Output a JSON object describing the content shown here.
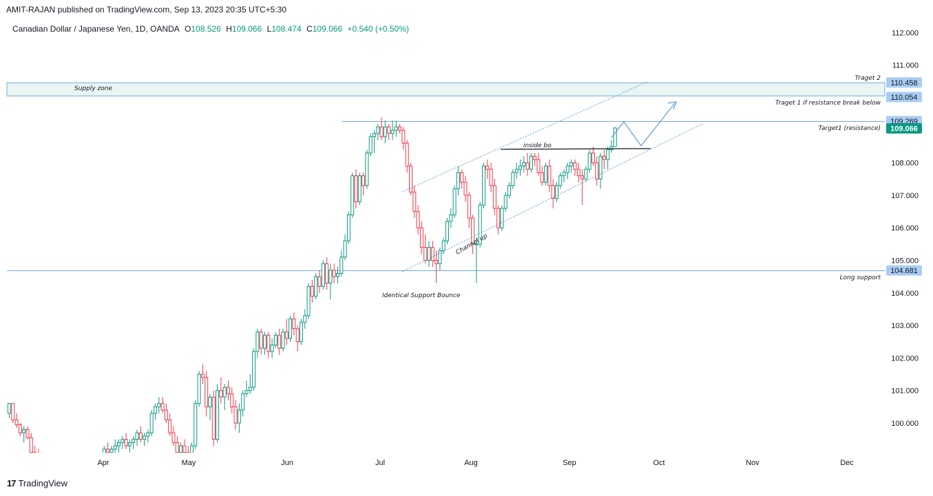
{
  "header": {
    "published": "AMIT-RAJAN published on TradingView.com, Sep 13, 2023 20:35 UTC+5:30"
  },
  "legend": {
    "symbol": "Canadian Dollar / Japanese Yen, 1D, OANDA",
    "o_label": "O",
    "o_value": "108.526",
    "h_label": "H",
    "h_value": "109.066",
    "l_label": "L",
    "l_value": "108.474",
    "c_label": "C",
    "c_value": "109.066",
    "change": "+0.540 (+0.50%)"
  },
  "footer": {
    "brand": "TradingView",
    "logo": "17"
  },
  "colors": {
    "up": "#089981",
    "down": "#f23645",
    "line": "#5b9bd5",
    "zone_fill": "#e8f5f3",
    "tag_fill": "#a9cdf4",
    "last_fill": "#089981",
    "trend": "#2962ff"
  },
  "chart_data": {
    "type": "candlestick",
    "title": "Canadian Dollar / Japanese Yen, 1D, OANDA",
    "ylim": [
      99.2,
      112.5
    ],
    "y_ticks": [
      100,
      101,
      102,
      103,
      104,
      105,
      106,
      107,
      108,
      109,
      110,
      111,
      112
    ],
    "y_tick_labels": [
      "100.000",
      "101.000",
      "102.000",
      "103.000",
      "104.000",
      "105.000",
      "106.000",
      "107.000",
      "108.000",
      "",
      "",
      "111.000",
      "112.000"
    ],
    "x_month_labels": [
      "Apr",
      "May",
      "Jun",
      "Jul",
      "Aug",
      "Sep",
      "Oct",
      "Nov",
      "Dec"
    ],
    "candles": [
      [
        100.3,
        100.6,
        100.15,
        100.6
      ],
      [
        100.6,
        100.6,
        100.0,
        100.1
      ],
      [
        100.1,
        100.3,
        99.85,
        99.95
      ],
      [
        99.95,
        100.0,
        99.6,
        99.7
      ],
      [
        99.7,
        99.9,
        99.4,
        99.8
      ],
      [
        99.8,
        99.9,
        99.5,
        99.55
      ],
      [
        99.55,
        99.7,
        99.0,
        99.1
      ],
      [
        99.1,
        99.3,
        98.8,
        99.0
      ],
      [
        99.0,
        99.2,
        98.7,
        98.9
      ],
      [
        98.9,
        99.1,
        98.6,
        98.8
      ],
      [
        98.8,
        99.0,
        98.5,
        98.7
      ],
      [
        98.7,
        98.9,
        98.4,
        98.6
      ],
      [
        98.6,
        98.8,
        98.3,
        98.7
      ],
      [
        98.7,
        98.9,
        98.4,
        98.6
      ],
      [
        98.6,
        98.8,
        98.4,
        98.5
      ],
      [
        98.5,
        98.7,
        98.3,
        98.6
      ],
      [
        98.6,
        98.8,
        98.4,
        98.7
      ],
      [
        98.7,
        98.9,
        98.5,
        98.6
      ],
      [
        98.6,
        98.8,
        98.4,
        98.5
      ],
      [
        98.5,
        98.7,
        98.3,
        98.4
      ],
      [
        98.4,
        98.6,
        98.2,
        98.5
      ],
      [
        98.5,
        98.7,
        98.3,
        98.6
      ],
      [
        98.6,
        98.8,
        98.4,
        98.7
      ],
      [
        98.7,
        98.9,
        98.5,
        98.8
      ],
      [
        98.8,
        99.0,
        98.6,
        98.9
      ],
      [
        98.9,
        99.1,
        98.7,
        99.0
      ],
      [
        99.0,
        99.3,
        98.8,
        99.2
      ],
      [
        99.2,
        99.4,
        99.0,
        99.1
      ],
      [
        99.1,
        99.3,
        98.9,
        99.2
      ],
      [
        99.2,
        99.5,
        99.0,
        99.3
      ],
      [
        99.3,
        99.5,
        99.1,
        99.4
      ],
      [
        99.4,
        99.6,
        99.2,
        99.5
      ],
      [
        99.5,
        99.7,
        99.2,
        99.3
      ],
      [
        99.3,
        99.5,
        99.1,
        99.4
      ],
      [
        99.4,
        99.6,
        99.2,
        99.5
      ],
      [
        99.5,
        99.8,
        99.3,
        99.7
      ],
      [
        99.7,
        99.9,
        99.4,
        99.5
      ],
      [
        99.5,
        99.7,
        99.3,
        99.6
      ],
      [
        99.6,
        99.8,
        99.4,
        99.7
      ],
      [
        99.7,
        100.4,
        99.6,
        100.3
      ],
      [
        100.3,
        100.6,
        100.1,
        100.5
      ],
      [
        100.5,
        100.8,
        100.3,
        100.6
      ],
      [
        100.6,
        100.8,
        100.3,
        100.4
      ],
      [
        100.4,
        100.6,
        100.0,
        100.1
      ],
      [
        100.1,
        100.3,
        99.6,
        99.7
      ],
      [
        99.7,
        99.9,
        99.3,
        99.4
      ],
      [
        99.4,
        99.6,
        99.0,
        99.1
      ],
      [
        99.1,
        99.4,
        98.9,
        99.3
      ],
      [
        99.3,
        99.5,
        99.0,
        99.1
      ],
      [
        99.1,
        99.3,
        98.8,
        99.0
      ],
      [
        99.0,
        99.4,
        98.9,
        99.3
      ],
      [
        99.3,
        100.7,
        99.2,
        100.6
      ],
      [
        100.6,
        101.6,
        100.5,
        101.5
      ],
      [
        101.5,
        101.8,
        101.2,
        101.4
      ],
      [
        101.4,
        101.6,
        100.2,
        100.5
      ],
      [
        100.5,
        100.9,
        100.1,
        100.8
      ],
      [
        100.8,
        101.0,
        99.3,
        99.5
      ],
      [
        99.5,
        101.2,
        99.4,
        101.0
      ],
      [
        101.0,
        101.4,
        100.6,
        100.8
      ],
      [
        100.8,
        101.2,
        100.4,
        101.1
      ],
      [
        101.1,
        101.3,
        100.7,
        100.9
      ],
      [
        100.9,
        101.1,
        100.3,
        100.5
      ],
      [
        100.5,
        100.7,
        99.8,
        100.0
      ],
      [
        100.0,
        100.6,
        99.7,
        100.4
      ],
      [
        100.4,
        101.0,
        100.2,
        100.9
      ],
      [
        100.9,
        101.3,
        100.8,
        101.0
      ],
      [
        101.0,
        101.5,
        100.9,
        101.1
      ],
      [
        101.1,
        102.3,
        101.0,
        102.2
      ],
      [
        102.2,
        102.9,
        102.0,
        102.8
      ],
      [
        102.8,
        102.9,
        102.1,
        102.3
      ],
      [
        102.3,
        102.8,
        102.1,
        102.7
      ],
      [
        102.7,
        102.8,
        102.0,
        102.2
      ],
      [
        102.2,
        102.6,
        102.0,
        102.4
      ],
      [
        102.4,
        102.8,
        102.3,
        102.7
      ],
      [
        102.7,
        102.9,
        102.1,
        102.3
      ],
      [
        102.3,
        102.9,
        102.2,
        102.8
      ],
      [
        102.8,
        103.2,
        102.4,
        102.6
      ],
      [
        102.6,
        103.3,
        102.5,
        103.2
      ],
      [
        103.2,
        103.4,
        102.7,
        102.9
      ],
      [
        102.9,
        103.0,
        102.2,
        102.5
      ],
      [
        102.5,
        103.2,
        102.4,
        103.1
      ],
      [
        103.1,
        103.5,
        102.9,
        103.3
      ],
      [
        103.3,
        104.3,
        103.2,
        104.2
      ],
      [
        104.2,
        104.4,
        103.7,
        103.9
      ],
      [
        103.9,
        104.6,
        103.8,
        104.5
      ],
      [
        104.5,
        104.7,
        104.0,
        104.2
      ],
      [
        104.2,
        105.0,
        104.1,
        104.9
      ],
      [
        104.9,
        105.1,
        104.1,
        104.3
      ],
      [
        104.3,
        104.9,
        103.8,
        104.7
      ],
      [
        104.7,
        104.9,
        104.3,
        104.5
      ],
      [
        104.5,
        104.8,
        104.3,
        104.6
      ],
      [
        104.6,
        105.3,
        104.5,
        105.1
      ],
      [
        105.1,
        105.8,
        105.0,
        105.6
      ],
      [
        105.6,
        106.5,
        105.5,
        106.4
      ],
      [
        106.4,
        107.7,
        106.3,
        107.6
      ],
      [
        107.6,
        107.8,
        106.6,
        106.8
      ],
      [
        106.8,
        107.7,
        106.7,
        107.6
      ],
      [
        107.6,
        107.7,
        107.0,
        107.3
      ],
      [
        107.3,
        108.4,
        107.2,
        108.3
      ],
      [
        108.3,
        108.9,
        108.2,
        108.8
      ],
      [
        108.8,
        109.0,
        108.3,
        108.9
      ],
      [
        108.9,
        109.2,
        108.7,
        109.1
      ],
      [
        109.1,
        109.4,
        108.7,
        108.8
      ],
      [
        108.8,
        109.3,
        108.6,
        109.1
      ],
      [
        109.1,
        109.2,
        108.7,
        108.9
      ],
      [
        108.9,
        109.3,
        108.7,
        109.0
      ],
      [
        109.0,
        109.3,
        108.8,
        109.1
      ],
      [
        109.1,
        109.2,
        108.9,
        109.0
      ],
      [
        109.0,
        109.1,
        108.4,
        108.6
      ],
      [
        108.6,
        108.7,
        107.7,
        107.9
      ],
      [
        107.9,
        108.0,
        107.0,
        107.1
      ],
      [
        107.1,
        107.3,
        106.3,
        106.5
      ],
      [
        106.5,
        106.7,
        105.8,
        106.0
      ],
      [
        106.0,
        106.2,
        105.2,
        105.4
      ],
      [
        105.4,
        105.8,
        104.9,
        105.0
      ],
      [
        105.0,
        105.6,
        104.8,
        105.4
      ],
      [
        105.4,
        105.6,
        104.8,
        105.0
      ],
      [
        105.0,
        105.3,
        104.3,
        104.9
      ],
      [
        104.9,
        105.4,
        104.7,
        105.3
      ],
      [
        105.3,
        105.7,
        105.2,
        105.6
      ],
      [
        105.6,
        106.3,
        105.5,
        106.2
      ],
      [
        106.2,
        106.6,
        106.0,
        106.4
      ],
      [
        106.4,
        107.3,
        106.3,
        107.2
      ],
      [
        107.2,
        107.9,
        107.0,
        107.7
      ],
      [
        107.7,
        107.8,
        107.2,
        107.4
      ],
      [
        107.4,
        107.6,
        106.8,
        107.0
      ],
      [
        107.0,
        107.1,
        106.0,
        106.3
      ],
      [
        106.3,
        106.4,
        105.2,
        105.5
      ],
      [
        105.5,
        105.7,
        104.3,
        105.5
      ],
      [
        105.5,
        106.8,
        105.4,
        106.7
      ],
      [
        106.7,
        108.0,
        106.6,
        107.9
      ],
      [
        107.9,
        108.1,
        107.5,
        107.8
      ],
      [
        107.8,
        108.0,
        107.1,
        107.3
      ],
      [
        107.3,
        107.5,
        106.4,
        106.6
      ],
      [
        106.6,
        106.7,
        105.8,
        106.0
      ],
      [
        106.0,
        106.7,
        105.9,
        106.6
      ],
      [
        106.6,
        107.1,
        106.5,
        107.0
      ],
      [
        107.0,
        107.4,
        106.9,
        107.3
      ],
      [
        107.3,
        107.8,
        107.2,
        107.7
      ],
      [
        107.7,
        108.0,
        107.5,
        107.8
      ],
      [
        107.8,
        108.1,
        107.6,
        107.9
      ],
      [
        107.9,
        108.2,
        107.7,
        108.0
      ],
      [
        108.0,
        108.3,
        107.6,
        107.8
      ],
      [
        107.8,
        108.3,
        107.7,
        108.2
      ],
      [
        108.2,
        108.3,
        107.9,
        108.1
      ],
      [
        108.1,
        108.3,
        107.6,
        107.7
      ],
      [
        107.7,
        107.9,
        107.3,
        107.4
      ],
      [
        107.4,
        108.0,
        107.3,
        107.9
      ],
      [
        107.9,
        108.1,
        107.1,
        107.3
      ],
      [
        107.3,
        107.5,
        106.6,
        106.9
      ],
      [
        106.9,
        107.4,
        106.8,
        107.3
      ],
      [
        107.3,
        107.7,
        107.2,
        107.6
      ],
      [
        107.6,
        107.8,
        107.4,
        107.7
      ],
      [
        107.7,
        108.0,
        107.5,
        107.9
      ],
      [
        107.9,
        108.1,
        107.7,
        108.0
      ],
      [
        108.0,
        108.1,
        107.6,
        107.8
      ],
      [
        107.8,
        108.0,
        107.4,
        107.6
      ],
      [
        107.6,
        107.8,
        106.7,
        107.5
      ],
      [
        107.5,
        107.9,
        107.4,
        107.8
      ],
      [
        107.8,
        108.4,
        107.7,
        108.3
      ],
      [
        108.3,
        108.5,
        107.9,
        108.0
      ],
      [
        108.0,
        108.2,
        107.3,
        107.5
      ],
      [
        107.5,
        108.3,
        107.2,
        108.2
      ],
      [
        108.2,
        108.4,
        107.8,
        108.1
      ],
      [
        108.1,
        108.5,
        107.8,
        108.4
      ],
      [
        108.4,
        108.7,
        108.3,
        108.5
      ],
      [
        108.5,
        109.1,
        108.5,
        109.07
      ]
    ],
    "horizontal_levels": [
      {
        "price": 109.269,
        "label": "Target1 (resistance)"
      },
      {
        "price": 104.681,
        "label": "Long support"
      }
    ],
    "supply_zone": {
      "low": 110.054,
      "high": 110.458,
      "label": "Supply zone"
    },
    "level_notes": [
      {
        "price": 110.458,
        "label": "Traget 2"
      },
      {
        "price": 110.054,
        "label": "Traget 1 if resistance break below"
      }
    ],
    "price_tags": [
      {
        "price": 110.458,
        "text": "110.458",
        "last": false
      },
      {
        "price": 110.054,
        "text": "110.054",
        "last": false
      },
      {
        "price": 109.269,
        "text": "109.269",
        "last": false
      },
      {
        "price": 109.066,
        "text": "109.066",
        "last": true
      },
      {
        "price": 104.681,
        "text": "104.681",
        "last": false
      }
    ],
    "annotations": {
      "inside_bo": "inside bo",
      "channel_up": "Channel up",
      "support_bounce": "Identical Support Bounce"
    }
  }
}
